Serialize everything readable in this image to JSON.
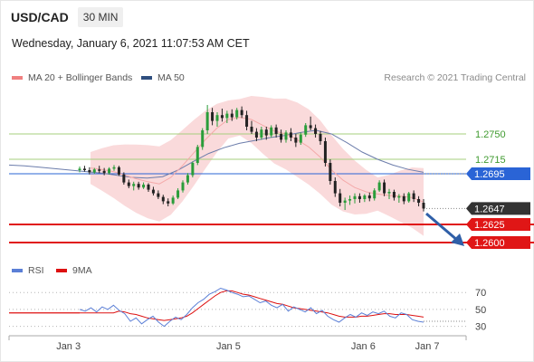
{
  "header": {
    "symbol": "USD/CAD",
    "timeframe": "30 MIN",
    "datetime": "Wednesday, January 6, 2021 11:07:53 AM CET",
    "credit": "Research © 2021 Trading Central"
  },
  "legend": {
    "main": [
      {
        "label": "MA 20 + Bollinger Bands",
        "color": "#f08080"
      },
      {
        "label": "MA 50",
        "color": "#2f4f7f"
      }
    ],
    "rsi": [
      {
        "label": "RSI",
        "color": "#5b7fd6"
      },
      {
        "label": "9MA",
        "color": "#dd1111"
      }
    ]
  },
  "colors": {
    "candle_up": "#2a9d3a",
    "candle_down": "#222222",
    "bollinger_fill": "#fadadb",
    "ma20": "#f4a9a9",
    "ma50": "#6c7dab",
    "resistance": "#a6cf7c",
    "pivot": "#2a64d6",
    "support": "#e01616",
    "arrow": "#2f5fa8",
    "current": "#333333"
  },
  "chart_data": {
    "type": "candlestick",
    "xaxis": {
      "ticks": [
        {
          "label": "Jan 3",
          "t": 0.13
        },
        {
          "label": "Jan 5",
          "t": 0.48
        },
        {
          "label": "Jan 6",
          "t": 0.775
        },
        {
          "label": "Jan 7",
          "t": 0.915
        }
      ]
    },
    "ylim": [
      1.2585,
      1.281
    ],
    "levels": [
      {
        "value": 1.275,
        "label": "1.2750",
        "kind": "resistance"
      },
      {
        "value": 1.2715,
        "label": "1.2715",
        "kind": "resistance"
      },
      {
        "value": 1.2695,
        "label": "1.2695",
        "kind": "pivot"
      },
      {
        "value": 1.2647,
        "label": "1.2647",
        "kind": "current"
      },
      {
        "value": 1.2625,
        "label": "1.2625",
        "kind": "support"
      },
      {
        "value": 1.26,
        "label": "1.2600",
        "kind": "support"
      }
    ],
    "candles": [
      [
        1.27,
        1.2705,
        1.2697,
        1.2702
      ],
      [
        1.2702,
        1.2706,
        1.2698,
        1.27
      ],
      [
        1.27,
        1.2704,
        1.2694,
        1.2697
      ],
      [
        1.2697,
        1.2703,
        1.2695,
        1.2701
      ],
      [
        1.2701,
        1.2706,
        1.2696,
        1.2699
      ],
      [
        1.2699,
        1.2703,
        1.2693,
        1.2696
      ],
      [
        1.2696,
        1.2704,
        1.2694,
        1.2702
      ],
      [
        1.2702,
        1.2707,
        1.2699,
        1.2704
      ],
      [
        1.2704,
        1.2706,
        1.2692,
        1.2694
      ],
      [
        1.2694,
        1.2697,
        1.268,
        1.2683
      ],
      [
        1.2683,
        1.2687,
        1.2675,
        1.2678
      ],
      [
        1.2678,
        1.2684,
        1.2672,
        1.2681
      ],
      [
        1.2681,
        1.2684,
        1.2673,
        1.2676
      ],
      [
        1.2676,
        1.2683,
        1.2674,
        1.268
      ],
      [
        1.268,
        1.2682,
        1.267,
        1.2673
      ],
      [
        1.2673,
        1.2677,
        1.2665,
        1.2668
      ],
      [
        1.2668,
        1.2672,
        1.266,
        1.2663
      ],
      [
        1.2663,
        1.2666,
        1.2653,
        1.2657
      ],
      [
        1.2657,
        1.2661,
        1.265,
        1.2654
      ],
      [
        1.2654,
        1.2665,
        1.2652,
        1.2662
      ],
      [
        1.2662,
        1.2675,
        1.266,
        1.2672
      ],
      [
        1.2672,
        1.2686,
        1.2669,
        1.2683
      ],
      [
        1.2683,
        1.2696,
        1.268,
        1.2693
      ],
      [
        1.2693,
        1.2712,
        1.269,
        1.271
      ],
      [
        1.271,
        1.2735,
        1.2707,
        1.2732
      ],
      [
        1.2732,
        1.2758,
        1.2728,
        1.2755
      ],
      [
        1.2755,
        1.279,
        1.275,
        1.278
      ],
      [
        1.278,
        1.2786,
        1.2762,
        1.2768
      ],
      [
        1.2768,
        1.278,
        1.276,
        1.2776
      ],
      [
        1.2776,
        1.2785,
        1.2767,
        1.2772
      ],
      [
        1.2772,
        1.2782,
        1.2765,
        1.2778
      ],
      [
        1.2778,
        1.2784,
        1.2768,
        1.2773
      ],
      [
        1.2773,
        1.2786,
        1.277,
        1.2783
      ],
      [
        1.2783,
        1.2788,
        1.2772,
        1.2776
      ],
      [
        1.2776,
        1.2782,
        1.2755,
        1.276
      ],
      [
        1.276,
        1.2768,
        1.275,
        1.2753
      ],
      [
        1.2753,
        1.2758,
        1.274,
        1.2745
      ],
      [
        1.2745,
        1.276,
        1.2742,
        1.2756
      ],
      [
        1.2756,
        1.276,
        1.2742,
        1.2748
      ],
      [
        1.2748,
        1.2762,
        1.2745,
        1.2759
      ],
      [
        1.2759,
        1.2763,
        1.2745,
        1.275
      ],
      [
        1.275,
        1.2756,
        1.2738,
        1.2742
      ],
      [
        1.2742,
        1.2755,
        1.2738,
        1.2752
      ],
      [
        1.2752,
        1.2758,
        1.274,
        1.2745
      ],
      [
        1.2745,
        1.275,
        1.2732,
        1.2738
      ],
      [
        1.2738,
        1.2752,
        1.2735,
        1.2749
      ],
      [
        1.2749,
        1.2765,
        1.2746,
        1.2762
      ],
      [
        1.2762,
        1.2774,
        1.2755,
        1.2758
      ],
      [
        1.2758,
        1.2763,
        1.2745,
        1.275
      ],
      [
        1.275,
        1.2754,
        1.2735,
        1.274
      ],
      [
        1.274,
        1.2745,
        1.2705,
        1.271
      ],
      [
        1.271,
        1.2715,
        1.268,
        1.2685
      ],
      [
        1.2685,
        1.269,
        1.2663,
        1.2668
      ],
      [
        1.2668,
        1.2674,
        1.265,
        1.2655
      ],
      [
        1.2655,
        1.2662,
        1.2645,
        1.2658
      ],
      [
        1.2658,
        1.2665,
        1.2652,
        1.266
      ],
      [
        1.266,
        1.2668,
        1.2654,
        1.2664
      ],
      [
        1.2664,
        1.2668,
        1.2655,
        1.266
      ],
      [
        1.266,
        1.2667,
        1.2656,
        1.2665
      ],
      [
        1.2665,
        1.2669,
        1.2657,
        1.2661
      ],
      [
        1.2661,
        1.2675,
        1.2658,
        1.2672
      ],
      [
        1.2672,
        1.2686,
        1.267,
        1.2683
      ],
      [
        1.2683,
        1.2687,
        1.2664,
        1.2668
      ],
      [
        1.2668,
        1.2674,
        1.266,
        1.267
      ],
      [
        1.267,
        1.2673,
        1.2658,
        1.2662
      ],
      [
        1.2662,
        1.2667,
        1.2655,
        1.2664
      ],
      [
        1.2664,
        1.2668,
        1.2653,
        1.2657
      ],
      [
        1.2657,
        1.267,
        1.2655,
        1.2668
      ],
      [
        1.2668,
        1.2672,
        1.2656,
        1.266
      ],
      [
        1.266,
        1.2664,
        1.265,
        1.2655
      ],
      [
        1.2655,
        1.266,
        1.2643,
        1.2647
      ]
    ],
    "ma20": [
      1.2703,
      1.2701,
      1.2698,
      1.2693,
      1.2688,
      1.2684,
      1.2681,
      1.269,
      1.2706,
      1.2724,
      1.2742,
      1.2758,
      1.277,
      1.2773,
      1.277,
      1.2762,
      1.2754,
      1.275,
      1.2742,
      1.2732,
      1.2718,
      1.27,
      1.2686,
      1.2676,
      1.267,
      1.2667,
      1.2665,
      1.2664,
      1.2662,
      1.2656
    ],
    "ma50": [
      1.2707,
      1.2706,
      1.2704,
      1.2702,
      1.27,
      1.2698,
      1.2696,
      1.2693,
      1.269,
      1.2689,
      1.2691,
      1.27,
      1.2712,
      1.2723,
      1.2731,
      1.2737,
      1.2741,
      1.2745,
      1.2748,
      1.2752,
      1.2755,
      1.275,
      1.2738,
      1.2725,
      1.2715,
      1.2707,
      1.2701,
      1.2697
    ],
    "rsi": {
      "levels": [
        70,
        50,
        30
      ],
      "ylim": [
        20,
        82
      ],
      "rsi": [
        50,
        48,
        52,
        47,
        53,
        50,
        55,
        49,
        45,
        36,
        40,
        33,
        38,
        42,
        35,
        30,
        36,
        41,
        38,
        44,
        52,
        58,
        62,
        68,
        71,
        75,
        73,
        70,
        68,
        65,
        66,
        62,
        58,
        60,
        55,
        52,
        56,
        48,
        53,
        50,
        47,
        52,
        45,
        49,
        42,
        38,
        35,
        40,
        44,
        41,
        46,
        43,
        47,
        45,
        48,
        42,
        40,
        46,
        44,
        38,
        36,
        35
      ],
      "ma9": [
        46,
        46,
        46,
        46,
        46,
        46,
        46,
        48,
        47,
        45,
        44,
        42,
        40,
        39,
        38,
        37,
        38,
        39,
        40,
        42,
        46,
        51,
        56,
        61,
        66,
        70,
        72,
        72,
        70,
        68,
        67,
        65,
        63,
        61,
        59,
        57,
        56,
        54,
        52,
        51,
        50,
        49,
        48,
        47,
        46,
        44,
        42,
        41,
        41,
        41,
        42,
        42,
        43,
        44,
        45,
        45,
        44,
        44,
        44,
        43,
        42,
        41
      ]
    }
  }
}
